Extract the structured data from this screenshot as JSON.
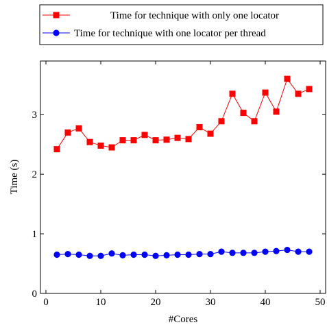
{
  "chart_data": {
    "type": "line",
    "title": "",
    "xlabel": "#Cores",
    "ylabel": "Time (s)",
    "xlim": [
      -1,
      51
    ],
    "ylim": [
      0,
      3.9
    ],
    "xticks": [
      0,
      10,
      20,
      30,
      40,
      50
    ],
    "yticks": [
      0,
      1,
      2,
      3
    ],
    "grid": false,
    "legend_position": "top, above plot",
    "x": [
      2,
      4,
      6,
      8,
      10,
      12,
      14,
      16,
      18,
      20,
      22,
      24,
      26,
      28,
      30,
      32,
      34,
      36,
      38,
      40,
      42,
      44,
      46,
      48
    ],
    "series": [
      {
        "name": "Time for technique with only one locator",
        "color": "#ff0000",
        "marker": "square",
        "values": [
          2.42,
          2.7,
          2.77,
          2.54,
          2.48,
          2.45,
          2.57,
          2.57,
          2.66,
          2.57,
          2.58,
          2.61,
          2.59,
          2.79,
          2.68,
          2.89,
          3.35,
          3.03,
          2.89,
          3.37,
          3.05,
          3.6,
          3.35,
          3.43
        ]
      },
      {
        "name": "Time for technique with one locator per thread",
        "color": "#0000ff",
        "marker": "circle",
        "values": [
          0.65,
          0.66,
          0.65,
          0.63,
          0.63,
          0.67,
          0.64,
          0.65,
          0.65,
          0.63,
          0.64,
          0.65,
          0.65,
          0.66,
          0.66,
          0.7,
          0.68,
          0.68,
          0.68,
          0.7,
          0.71,
          0.73,
          0.7,
          0.7
        ]
      }
    ]
  }
}
